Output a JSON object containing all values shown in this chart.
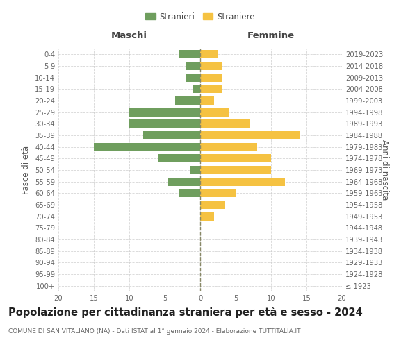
{
  "age_groups": [
    "100+",
    "95-99",
    "90-94",
    "85-89",
    "80-84",
    "75-79",
    "70-74",
    "65-69",
    "60-64",
    "55-59",
    "50-54",
    "45-49",
    "40-44",
    "35-39",
    "30-34",
    "25-29",
    "20-24",
    "15-19",
    "10-14",
    "5-9",
    "0-4"
  ],
  "birth_years": [
    "≤ 1923",
    "1924-1928",
    "1929-1933",
    "1934-1938",
    "1939-1943",
    "1944-1948",
    "1949-1953",
    "1954-1958",
    "1959-1963",
    "1964-1968",
    "1969-1973",
    "1974-1978",
    "1979-1983",
    "1984-1988",
    "1989-1993",
    "1994-1998",
    "1999-2003",
    "2004-2008",
    "2009-2013",
    "2014-2018",
    "2019-2023"
  ],
  "males": [
    0,
    0,
    0,
    0,
    0,
    0,
    0,
    0,
    3,
    4.5,
    1.5,
    6,
    15,
    8,
    10,
    10,
    3.5,
    1,
    2,
    2,
    3
  ],
  "females": [
    0,
    0,
    0,
    0,
    0,
    0,
    2,
    3.5,
    5,
    12,
    10,
    10,
    8,
    14,
    7,
    4,
    2,
    3,
    3,
    3,
    2.5
  ],
  "male_color": "#6f9e5e",
  "female_color": "#f5c242",
  "grid_color": "#cccccc",
  "center_line_color": "#888866",
  "title": "Popolazione per cittadinanza straniera per età e sesso - 2024",
  "subtitle": "COMUNE DI SAN VITALIANO (NA) - Dati ISTAT al 1° gennaio 2024 - Elaborazione TUTTITALIA.IT",
  "ylabel_left": "Fasce di età",
  "ylabel_right": "Anni di nascita",
  "header_maschi": "Maschi",
  "header_femmine": "Femmine",
  "legend_male": "Stranieri",
  "legend_female": "Straniere",
  "xlim": 20,
  "tick_fontsize": 7.2,
  "label_fontsize": 8.5,
  "title_fontsize": 10.5
}
